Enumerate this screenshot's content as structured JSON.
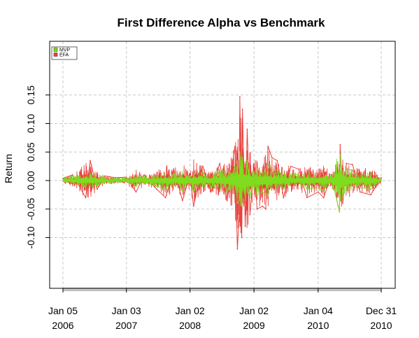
{
  "chart_data": {
    "type": "line",
    "title": "First Difference Alpha vs Benchmark",
    "xlabel": "",
    "ylabel": "Return",
    "ylim": [
      -0.13,
      0.16
    ],
    "xlim": [
      "2006-01-05",
      "2010-12-31"
    ],
    "y_ticks": [
      -0.1,
      -0.05,
      0.0,
      0.05,
      0.1,
      0.15
    ],
    "y_tick_labels": [
      "-0.10",
      "-0.05",
      "0.00",
      "0.05",
      "0.10",
      "0.15"
    ],
    "x_ticks": [
      {
        "date": "2006-01-05",
        "label_top": "Jan 05",
        "label_bottom": "2006"
      },
      {
        "date": "2007-01-03",
        "label_top": "Jan 03",
        "label_bottom": "2007"
      },
      {
        "date": "2008-01-02",
        "label_top": "Jan 02",
        "label_bottom": "2008"
      },
      {
        "date": "2009-01-02",
        "label_top": "Jan 02",
        "label_bottom": "2009"
      },
      {
        "date": "2010-01-04",
        "label_top": "Jan 04",
        "label_bottom": "2010"
      },
      {
        "date": "2010-12-31",
        "label_top": "Dec 31",
        "label_bottom": "2010"
      }
    ],
    "grid": true,
    "legend_position": "top-left",
    "series": [
      {
        "name": "EFA",
        "color": "#e8423f",
        "x": [
          "2006-01-05",
          "2006-03-01",
          "2006-05-15",
          "2006-06-10",
          "2006-07-20",
          "2006-09-01",
          "2006-11-01",
          "2007-01-03",
          "2007-02-27",
          "2007-04-15",
          "2007-06-25",
          "2007-08-15",
          "2007-10-01",
          "2007-11-20",
          "2008-01-02",
          "2008-01-22",
          "2008-03-15",
          "2008-05-01",
          "2008-06-20",
          "2008-08-01",
          "2008-09-15",
          "2008-09-29",
          "2008-10-10",
          "2008-10-13",
          "2008-10-24",
          "2008-10-28",
          "2008-11-13",
          "2008-11-24",
          "2008-12-10",
          "2009-01-02",
          "2009-01-20",
          "2009-02-20",
          "2009-03-10",
          "2009-03-23",
          "2009-04-15",
          "2009-05-15",
          "2009-06-20",
          "2009-08-01",
          "2009-09-15",
          "2009-11-01",
          "2010-01-04",
          "2010-02-05",
          "2010-03-20",
          "2010-05-06",
          "2010-05-10",
          "2010-05-25",
          "2010-06-15",
          "2010-07-20",
          "2010-09-01",
          "2010-11-01",
          "2010-12-31"
        ],
        "values": [
          0.004,
          0.01,
          -0.03,
          0.035,
          -0.015,
          0.008,
          0.005,
          0.006,
          -0.02,
          0.01,
          -0.015,
          -0.03,
          0.02,
          -0.035,
          0.012,
          -0.045,
          0.025,
          -0.02,
          0.03,
          -0.035,
          0.06,
          -0.12,
          -0.06,
          0.147,
          -0.1,
          0.125,
          -0.08,
          0.09,
          -0.06,
          0.03,
          -0.05,
          -0.045,
          -0.05,
          0.06,
          0.04,
          0.035,
          -0.03,
          0.025,
          0.02,
          -0.03,
          -0.02,
          -0.03,
          0.01,
          -0.055,
          0.063,
          -0.04,
          0.03,
          0.028,
          -0.02,
          -0.025,
          0.005
        ]
      },
      {
        "name": "MVP",
        "color": "#7fdc1e",
        "x": [
          "2006-01-05",
          "2006-03-01",
          "2006-05-15",
          "2006-06-10",
          "2006-07-20",
          "2006-09-01",
          "2006-11-01",
          "2007-01-03",
          "2007-02-27",
          "2007-04-15",
          "2007-06-25",
          "2007-08-15",
          "2007-10-01",
          "2007-11-20",
          "2008-01-02",
          "2008-01-22",
          "2008-03-15",
          "2008-05-01",
          "2008-06-20",
          "2008-08-01",
          "2008-09-15",
          "2008-09-29",
          "2008-10-10",
          "2008-10-13",
          "2008-10-24",
          "2008-10-28",
          "2008-11-13",
          "2008-11-24",
          "2008-12-10",
          "2009-01-02",
          "2009-01-20",
          "2009-02-20",
          "2009-03-10",
          "2009-03-23",
          "2009-04-15",
          "2009-05-15",
          "2009-06-20",
          "2009-08-01",
          "2009-09-15",
          "2009-11-01",
          "2010-01-04",
          "2010-02-05",
          "2010-03-20",
          "2010-05-06",
          "2010-05-10",
          "2010-05-25",
          "2010-06-15",
          "2010-07-20",
          "2010-09-01",
          "2010-11-01",
          "2010-12-31"
        ],
        "values": [
          0.003,
          0.008,
          -0.012,
          0.012,
          -0.01,
          0.006,
          0.004,
          0.005,
          -0.01,
          0.008,
          -0.01,
          -0.015,
          0.012,
          -0.018,
          0.008,
          -0.02,
          0.015,
          -0.012,
          0.018,
          -0.02,
          0.025,
          -0.04,
          -0.035,
          0.05,
          -0.045,
          0.04,
          -0.035,
          0.035,
          -0.03,
          0.015,
          -0.025,
          -0.02,
          -0.025,
          0.028,
          0.02,
          0.018,
          -0.015,
          0.012,
          0.01,
          -0.015,
          -0.012,
          -0.018,
          0.008,
          -0.055,
          0.045,
          -0.03,
          0.02,
          0.018,
          -0.012,
          -0.015,
          0.003
        ]
      }
    ]
  }
}
